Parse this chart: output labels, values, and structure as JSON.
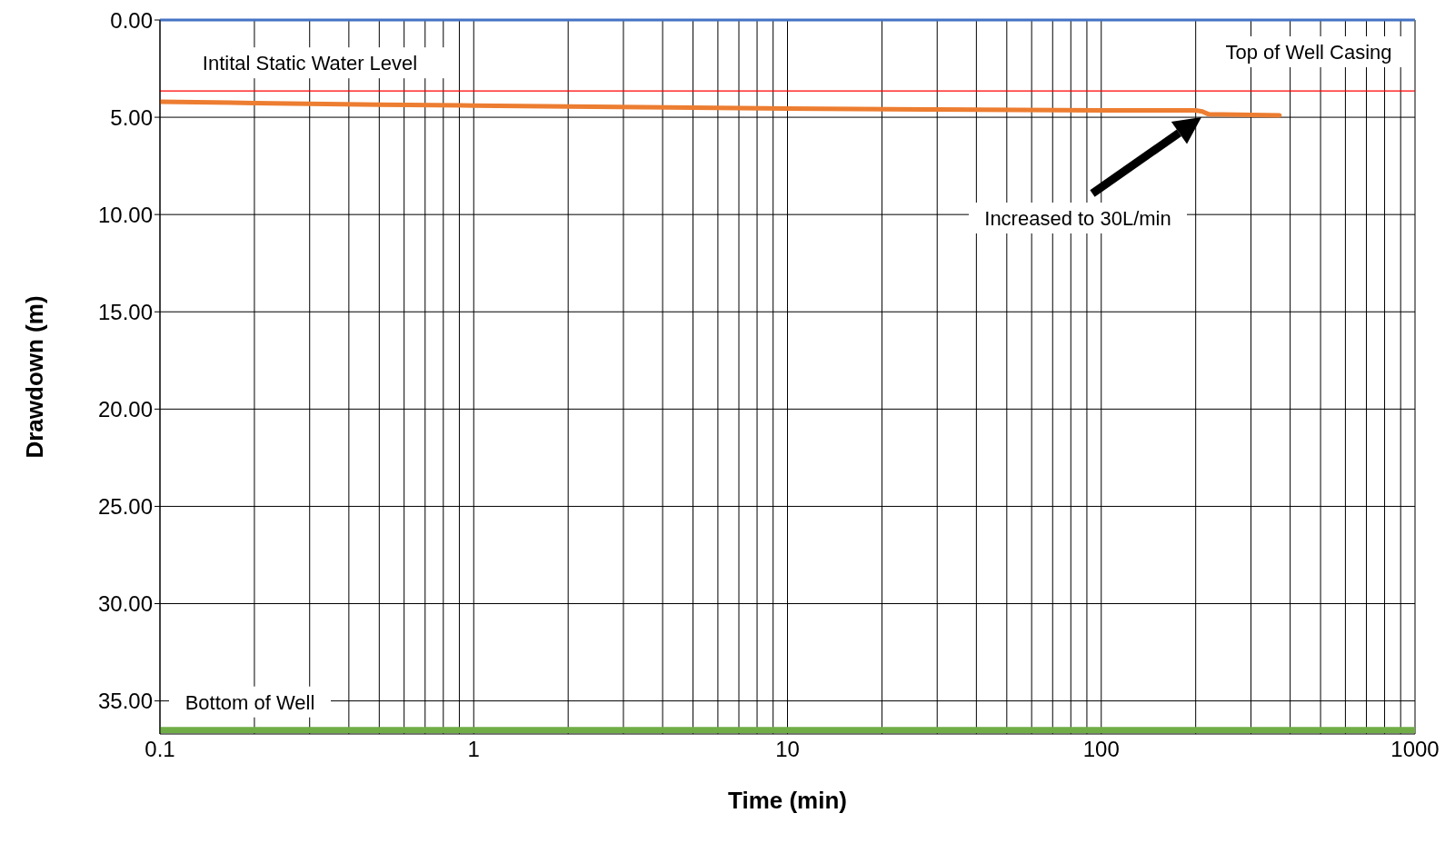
{
  "chart_data": {
    "type": "line",
    "xlabel": "Time (min)",
    "ylabel": "Drawdown (m)",
    "log": "x",
    "grid": true,
    "legend": false,
    "marker": "none",
    "line_style": "solid",
    "xlim": [
      0.1,
      1000
    ],
    "xticks": [
      {
        "value": 0.1,
        "label": "0.1"
      },
      {
        "value": 0.2,
        "label": null
      },
      {
        "value": 0.3,
        "label": null
      },
      {
        "value": 0.4,
        "label": null
      },
      {
        "value": 0.5,
        "label": null
      },
      {
        "value": 0.6,
        "label": null
      },
      {
        "value": 0.7,
        "label": null
      },
      {
        "value": 0.8,
        "label": null
      },
      {
        "value": 0.9,
        "label": null
      },
      1,
      {
        "value": 2,
        "label": null
      },
      {
        "value": 3,
        "label": null
      },
      {
        "value": 4,
        "label": null
      },
      {
        "value": 5,
        "label": null
      },
      {
        "value": 6,
        "label": null
      },
      {
        "value": 7,
        "label": null
      },
      {
        "value": 8,
        "label": null
      },
      {
        "value": 9,
        "label": null
      },
      10,
      {
        "value": 20,
        "label": null
      },
      {
        "value": 30,
        "label": null
      },
      {
        "value": 40,
        "label": null
      },
      {
        "value": 50,
        "label": null
      },
      {
        "value": 60,
        "label": null
      },
      {
        "value": 70,
        "label": null
      },
      {
        "value": 80,
        "label": null
      },
      {
        "value": 90,
        "label": null
      },
      100,
      {
        "value": 200,
        "label": null
      },
      {
        "value": 300,
        "label": null
      },
      {
        "value": 400,
        "label": null
      },
      {
        "value": 500,
        "label": null
      },
      {
        "value": 600,
        "label": null
      },
      {
        "value": 700,
        "label": null
      },
      {
        "value": 800,
        "label": null
      },
      {
        "value": 900,
        "label": null
      },
      1000
    ],
    "ylim": [
      36.7,
      0
    ],
    "yticks": [
      {
        "value": 0,
        "label": "0.00"
      },
      {
        "value": 5,
        "label": "5.00"
      },
      {
        "value": 10,
        "label": "10.00"
      },
      {
        "value": 15,
        "label": "15.00"
      },
      {
        "value": 20,
        "label": "20.00"
      },
      {
        "value": 25,
        "label": "25.00"
      },
      {
        "value": 30,
        "label": "30.00"
      },
      {
        "value": 35,
        "label": "35.00"
      }
    ],
    "series": [
      {
        "color": "#ed7d31",
        "x": [
          0.1,
          0.2,
          0.5,
          1,
          2,
          5,
          10,
          30,
          100,
          200,
          210,
          220,
          370
        ],
        "values": [
          4.2,
          4.27,
          4.35,
          4.4,
          4.45,
          4.5,
          4.55,
          4.6,
          4.65,
          4.65,
          4.7,
          4.85,
          4.9
        ]
      }
    ],
    "ref_lines": [
      {
        "axis": "y",
        "value": 0,
        "label": "Top of Well Casing",
        "color": "#4472c4"
      },
      {
        "axis": "y",
        "value": 3.65,
        "label": "Intital Static Water Level",
        "color": "#ff0000"
      },
      {
        "axis": "y",
        "value": 36.5,
        "label": "Bottom of Well",
        "color": "#70ad47"
      }
    ],
    "annotations": [
      "Increased to 30L/min"
    ]
  }
}
